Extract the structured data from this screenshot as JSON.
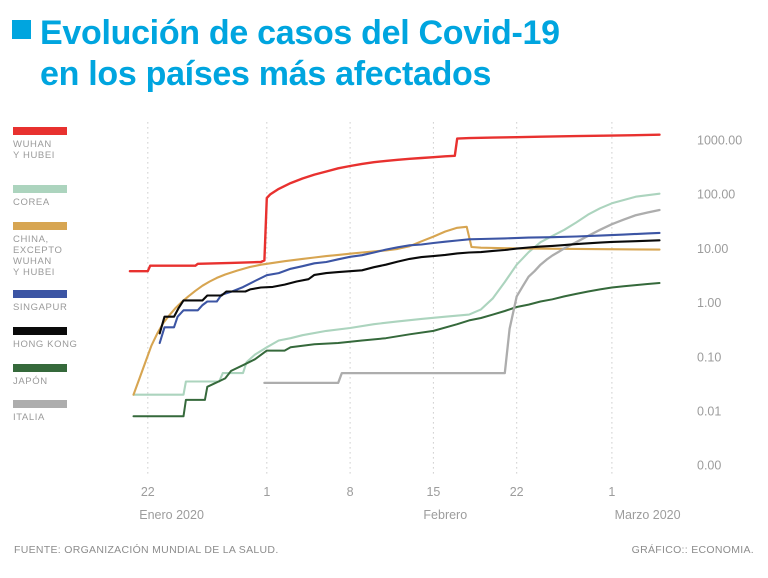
{
  "title": {
    "line1": "Evolución de casos del Covid-19",
    "line2": "en los países más afectados",
    "accent_color": "#00A5DF"
  },
  "legend": {
    "position": "left",
    "items": [
      {
        "id": "wuhan-y-hubei",
        "label_lines": [
          "WUHAN",
          "Y HUBEI"
        ],
        "color": "#E8312F"
      },
      {
        "id": "corea",
        "label_lines": [
          "COREA"
        ],
        "color": "#ACD4BE"
      },
      {
        "id": "china-excepto-wuhan-y-hubei",
        "label_lines": [
          "CHINA,",
          "EXCEPTO",
          "WUHAN",
          "Y HUBEI"
        ],
        "color": "#D7A551"
      },
      {
        "id": "singapur",
        "label_lines": [
          "SINGAPUR"
        ],
        "color": "#3C55A4"
      },
      {
        "id": "hong-kong",
        "label_lines": [
          "HONG KONG"
        ],
        "color": "#0A0A0A"
      },
      {
        "id": "japon",
        "label_lines": [
          "JAPÓN"
        ],
        "color": "#35693B"
      },
      {
        "id": "italia",
        "label_lines": [
          "ITALIA"
        ],
        "color": "#ADADAD"
      }
    ]
  },
  "chart_data": {
    "type": "line",
    "y_scale": "log",
    "grid": "vertical-dotted",
    "grid_color": "#CFCFCF",
    "y_tick_labels": [
      "1000.00",
      "100.00",
      "10.00",
      "1.00",
      "0.10",
      "0.01",
      "0.00"
    ],
    "x_encoding": "días, 0 = 20 enero 2020",
    "x_ticks": [
      {
        "day": 2,
        "label": "22"
      },
      {
        "day": 12,
        "label": "1"
      },
      {
        "day": 19,
        "label": "8"
      },
      {
        "day": 26,
        "label": "15"
      },
      {
        "day": 33,
        "label": "22"
      },
      {
        "day": 41,
        "label": "1"
      }
    ],
    "x_period_labels": [
      {
        "day": 4,
        "label": "Enero 2020"
      },
      {
        "day": 27,
        "label": "Febrero"
      },
      {
        "day": 44,
        "label": "Marzo 2020"
      }
    ],
    "series": [
      {
        "id": "corea",
        "name": "COREA",
        "color": "#ACD4BE",
        "width": 2.1,
        "points": [
          [
            0.8,
            0.02
          ],
          [
            5,
            0.02
          ],
          [
            5.2,
            0.035
          ],
          [
            8,
            0.035
          ],
          [
            8.3,
            0.05
          ],
          [
            10,
            0.05
          ],
          [
            10.3,
            0.08
          ],
          [
            11,
            0.11
          ],
          [
            12,
            0.15
          ],
          [
            13,
            0.2
          ],
          [
            14,
            0.22
          ],
          [
            15,
            0.25
          ],
          [
            17,
            0.3
          ],
          [
            19,
            0.34
          ],
          [
            21,
            0.4
          ],
          [
            23,
            0.45
          ],
          [
            25,
            0.5
          ],
          [
            27,
            0.55
          ],
          [
            29,
            0.6
          ],
          [
            30,
            0.75
          ],
          [
            31,
            1.2
          ],
          [
            32,
            2.4
          ],
          [
            33,
            5
          ],
          [
            34,
            8.5
          ],
          [
            35,
            13
          ],
          [
            36,
            17
          ],
          [
            37,
            22
          ],
          [
            38,
            30
          ],
          [
            39,
            42
          ],
          [
            40,
            55
          ],
          [
            41,
            68
          ],
          [
            43,
            90
          ],
          [
            45,
            102
          ]
        ]
      },
      {
        "id": "china-excepto-wuhan-y-hubei",
        "name": "CHINA, EXCEPTO WUHAN Y HUBEI",
        "color": "#D7A551",
        "width": 2.1,
        "points": [
          [
            0.8,
            0.02
          ],
          [
            1.3,
            0.04
          ],
          [
            1.8,
            0.08
          ],
          [
            2.3,
            0.16
          ],
          [
            2.8,
            0.27
          ],
          [
            3.3,
            0.42
          ],
          [
            3.8,
            0.58
          ],
          [
            4.3,
            0.78
          ],
          [
            4.8,
            1.0
          ],
          [
            5.4,
            1.3
          ],
          [
            6,
            1.65
          ],
          [
            6.6,
            2.05
          ],
          [
            7.2,
            2.45
          ],
          [
            7.8,
            2.85
          ],
          [
            8.5,
            3.3
          ],
          [
            9.5,
            3.9
          ],
          [
            10.5,
            4.5
          ],
          [
            11.5,
            5.0
          ],
          [
            12.5,
            5.4
          ],
          [
            13.5,
            5.8
          ],
          [
            15,
            6.4
          ],
          [
            16,
            6.8
          ],
          [
            17,
            7.2
          ],
          [
            18,
            7.6
          ],
          [
            19,
            8.0
          ],
          [
            20,
            8.4
          ],
          [
            21,
            8.8
          ],
          [
            22,
            9.2
          ],
          [
            23,
            9.8
          ],
          [
            24,
            11
          ],
          [
            25,
            13.5
          ],
          [
            26,
            16.5
          ],
          [
            27,
            20.5
          ],
          [
            28,
            24
          ],
          [
            28.8,
            25
          ],
          [
            29.2,
            10.6
          ],
          [
            30,
            10.3
          ],
          [
            33,
            10
          ],
          [
            38,
            9.8
          ],
          [
            45,
            9.5
          ]
        ]
      },
      {
        "id": "japon",
        "name": "JAPÓN",
        "color": "#35693B",
        "width": 2,
        "points": [
          [
            0.8,
            0.008
          ],
          [
            5,
            0.008
          ],
          [
            5.2,
            0.016
          ],
          [
            6.8,
            0.016
          ],
          [
            7,
            0.028
          ],
          [
            8.5,
            0.04
          ],
          [
            9,
            0.055
          ],
          [
            10,
            0.07
          ],
          [
            11,
            0.09
          ],
          [
            12,
            0.13
          ],
          [
            13.5,
            0.13
          ],
          [
            14,
            0.15
          ],
          [
            15,
            0.16
          ],
          [
            16,
            0.17
          ],
          [
            18,
            0.18
          ],
          [
            20,
            0.2
          ],
          [
            22,
            0.22
          ],
          [
            24,
            0.26
          ],
          [
            26,
            0.3
          ],
          [
            28,
            0.4
          ],
          [
            29,
            0.47
          ],
          [
            30,
            0.52
          ],
          [
            31,
            0.6
          ],
          [
            32,
            0.7
          ],
          [
            33,
            0.83
          ],
          [
            34,
            0.92
          ],
          [
            35,
            1.05
          ],
          [
            36,
            1.15
          ],
          [
            37,
            1.3
          ],
          [
            38,
            1.45
          ],
          [
            39,
            1.6
          ],
          [
            40,
            1.75
          ],
          [
            41,
            1.9
          ],
          [
            42,
            2.0
          ],
          [
            43,
            2.1
          ],
          [
            44,
            2.2
          ],
          [
            45,
            2.3
          ]
        ]
      },
      {
        "id": "italia",
        "name": "ITALIA",
        "color": "#ADADAD",
        "width": 2.3,
        "points": [
          [
            11.8,
            0.033
          ],
          [
            18,
            0.033
          ],
          [
            18.3,
            0.05
          ],
          [
            32,
            0.05
          ],
          [
            32.4,
            0.33
          ],
          [
            33,
            1.3
          ],
          [
            33.5,
            2.0
          ],
          [
            34,
            3.0
          ],
          [
            34.5,
            3.8
          ],
          [
            35,
            5.0
          ],
          [
            35.5,
            6.2
          ],
          [
            36,
            7.4
          ],
          [
            36.5,
            8.6
          ],
          [
            37,
            10
          ],
          [
            38,
            13
          ],
          [
            39,
            17
          ],
          [
            40,
            22
          ],
          [
            41,
            28
          ],
          [
            42,
            34
          ],
          [
            43,
            41
          ],
          [
            44,
            46
          ],
          [
            45,
            51
          ]
        ]
      },
      {
        "id": "singapur",
        "name": "SINGAPUR",
        "color": "#3C55A4",
        "width": 2.1,
        "points": [
          [
            3,
            0.18
          ],
          [
            3.4,
            0.35
          ],
          [
            4.2,
            0.35
          ],
          [
            4.5,
            0.55
          ],
          [
            5,
            0.72
          ],
          [
            6.2,
            0.72
          ],
          [
            6.6,
            0.9
          ],
          [
            7,
            1.05
          ],
          [
            7.8,
            1.05
          ],
          [
            8.2,
            1.4
          ],
          [
            9,
            1.58
          ],
          [
            10,
            1.93
          ],
          [
            11,
            2.5
          ],
          [
            12,
            3.2
          ],
          [
            13,
            3.5
          ],
          [
            14,
            4.2
          ],
          [
            15,
            4.7
          ],
          [
            16,
            5.3
          ],
          [
            17,
            5.6
          ],
          [
            18,
            6.3
          ],
          [
            19,
            7.0
          ],
          [
            20,
            7.5
          ],
          [
            21,
            8.4
          ],
          [
            22,
            9.5
          ],
          [
            23,
            10.5
          ],
          [
            24,
            11.4
          ],
          [
            25,
            11.8
          ],
          [
            26,
            12.6
          ],
          [
            27,
            13.3
          ],
          [
            28,
            14
          ],
          [
            29,
            14.7
          ],
          [
            30,
            14.9
          ],
          [
            32,
            15.3
          ],
          [
            34,
            15.8
          ],
          [
            36,
            16.1
          ],
          [
            38,
            16.6
          ],
          [
            40,
            17.2
          ],
          [
            42,
            18
          ],
          [
            44,
            18.9
          ],
          [
            45,
            19.3
          ]
        ]
      },
      {
        "id": "hong-kong",
        "name": "HONG KONG",
        "color": "#0A0A0A",
        "width": 2.1,
        "points": [
          [
            3,
            0.27
          ],
          [
            3.4,
            0.55
          ],
          [
            4.2,
            0.55
          ],
          [
            4.6,
            0.8
          ],
          [
            5,
            1.1
          ],
          [
            6.6,
            1.1
          ],
          [
            7,
            1.35
          ],
          [
            8.2,
            1.35
          ],
          [
            8.6,
            1.6
          ],
          [
            10.2,
            1.6
          ],
          [
            10.6,
            1.75
          ],
          [
            11.5,
            1.9
          ],
          [
            12.5,
            1.95
          ],
          [
            13.5,
            2.15
          ],
          [
            14.5,
            2.45
          ],
          [
            15.5,
            2.7
          ],
          [
            16,
            3.25
          ],
          [
            17,
            3.5
          ],
          [
            18,
            3.65
          ],
          [
            19,
            3.8
          ],
          [
            20,
            3.95
          ],
          [
            21,
            4.5
          ],
          [
            22,
            5.0
          ],
          [
            23,
            5.7
          ],
          [
            24,
            6.4
          ],
          [
            25,
            6.9
          ],
          [
            26,
            7.2
          ],
          [
            27,
            7.6
          ],
          [
            28,
            8.1
          ],
          [
            29,
            8.4
          ],
          [
            30,
            8.55
          ],
          [
            31,
            9.0
          ],
          [
            32,
            9.35
          ],
          [
            33,
            9.9
          ],
          [
            34,
            10.4
          ],
          [
            35,
            10.8
          ],
          [
            36,
            11.1
          ],
          [
            37,
            11.5
          ],
          [
            38,
            12
          ],
          [
            39,
            12.4
          ],
          [
            40,
            12.8
          ],
          [
            41,
            13.2
          ],
          [
            43,
            13.6
          ],
          [
            45,
            14.1
          ]
        ]
      },
      {
        "id": "wuhan-y-hubei",
        "name": "WUHAN Y HUBEI",
        "color": "#E8312F",
        "width": 2.4,
        "points": [
          [
            0.5,
            3.8
          ],
          [
            2,
            3.8
          ],
          [
            2.2,
            4.8
          ],
          [
            6,
            4.8
          ],
          [
            6.2,
            5.2
          ],
          [
            9,
            5.4
          ],
          [
            11.5,
            5.6
          ],
          [
            11.8,
            6
          ],
          [
            12,
            85
          ],
          [
            12.3,
            100
          ],
          [
            13,
            125
          ],
          [
            14,
            160
          ],
          [
            15,
            195
          ],
          [
            16,
            230
          ],
          [
            17,
            262
          ],
          [
            18,
            300
          ],
          [
            19,
            332
          ],
          [
            20,
            362
          ],
          [
            21,
            390
          ],
          [
            22,
            412
          ],
          [
            23,
            432
          ],
          [
            24,
            450
          ],
          [
            25,
            466
          ],
          [
            26,
            482
          ],
          [
            27,
            500
          ],
          [
            27.8,
            512
          ],
          [
            28,
            1060
          ],
          [
            29,
            1085
          ],
          [
            31,
            1105
          ],
          [
            33,
            1125
          ],
          [
            35,
            1150
          ],
          [
            38,
            1180
          ],
          [
            41,
            1205
          ],
          [
            45,
            1255
          ]
        ]
      }
    ]
  },
  "footer": {
    "source": "FUENTE: ORGANIZACIÓN MUNDIAL DE LA SALUD.",
    "credit": "GRÁFICO:: ECONOMIA."
  }
}
